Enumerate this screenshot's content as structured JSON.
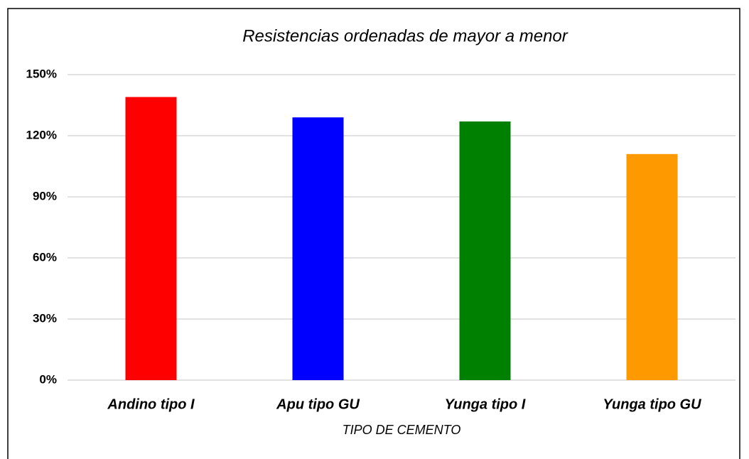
{
  "chart_data": {
    "type": "bar",
    "title": "Resistencias ordenadas de mayor a menor",
    "x_label": "TIPO DE CEMENTO",
    "categories": [
      "Andino tipo I",
      "Apu tipo GU",
      "Yunga tipo I",
      "Yunga tipo GU"
    ],
    "values": [
      139,
      129,
      127,
      111
    ],
    "colors": [
      "#ff0000",
      "#0000ff",
      "#008000",
      "#ff9900"
    ],
    "ylim": [
      0,
      150
    ],
    "yticks": [
      {
        "value": 0,
        "label": "0%"
      },
      {
        "value": 30,
        "label": "30%"
      },
      {
        "value": 60,
        "label": "60%"
      },
      {
        "value": 90,
        "label": "90%"
      },
      {
        "value": 120,
        "label": "120%"
      },
      {
        "value": 150,
        "label": "150%"
      }
    ],
    "grid": true
  }
}
